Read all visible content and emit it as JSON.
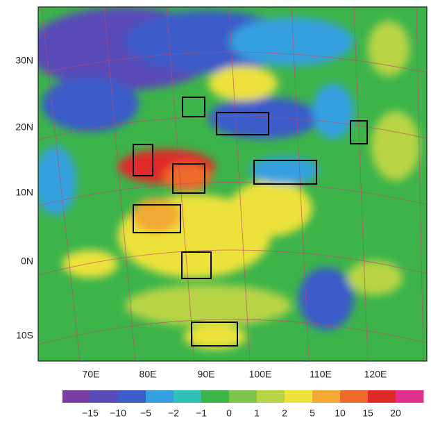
{
  "latitude_labels": [
    "30N",
    "20N",
    "10N",
    "0N",
    "10S"
  ],
  "longitude_labels": [
    "70E",
    "80E",
    "90E",
    "100E",
    "110E",
    "120E"
  ],
  "colorbar": {
    "labels": [
      "−15",
      "−10",
      "−5",
      "−2",
      "−1",
      "0",
      "1",
      "2",
      "5",
      "10",
      "15",
      "20"
    ],
    "colors": [
      "#7a3ea0",
      "#5a4cb8",
      "#3b5cc9",
      "#35a0e0",
      "#2fc0b8",
      "#3cb44a",
      "#7cc44a",
      "#b8d444",
      "#ece23a",
      "#f2a834",
      "#ee6a2a",
      "#e02a2a",
      "#e0308c"
    ]
  }
}
